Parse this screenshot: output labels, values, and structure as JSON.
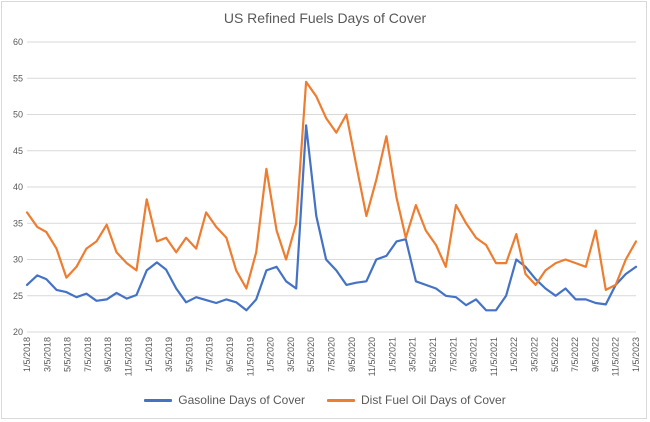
{
  "chart_data": {
    "type": "line",
    "title": "US Refined Fuels Days of Cover",
    "xlabel": "",
    "ylabel": "",
    "ylim": [
      20,
      60
    ],
    "yticks": [
      20,
      25,
      30,
      35,
      40,
      45,
      50,
      55,
      60
    ],
    "grid": true,
    "legend_position": "bottom",
    "x_tick_labels": [
      "1/5/2018",
      "3/5/2018",
      "5/5/2018",
      "7/5/2018",
      "9/5/2018",
      "11/5/2018",
      "1/5/2019",
      "3/5/2019",
      "5/5/2019",
      "7/5/2019",
      "9/5/2019",
      "11/5/2019",
      "1/5/2020",
      "3/5/2020",
      "5/5/2020",
      "7/5/2020",
      "9/5/2020",
      "11/5/2020",
      "1/5/2021",
      "3/5/2021",
      "5/5/2021",
      "7/5/2021",
      "9/5/2021",
      "11/5/2021",
      "1/5/2022",
      "3/5/2022",
      "5/5/2022",
      "7/5/2022",
      "9/5/2022",
      "11/5/2022",
      "1/5/2023"
    ],
    "x": [
      "2018-01-05",
      "2018-02-05",
      "2018-03-05",
      "2018-04-05",
      "2018-05-05",
      "2018-06-05",
      "2018-07-05",
      "2018-08-05",
      "2018-09-05",
      "2018-10-05",
      "2018-11-05",
      "2018-12-05",
      "2019-01-05",
      "2019-02-05",
      "2019-03-05",
      "2019-04-05",
      "2019-05-05",
      "2019-06-05",
      "2019-07-05",
      "2019-08-05",
      "2019-09-05",
      "2019-10-05",
      "2019-11-05",
      "2019-12-05",
      "2020-01-05",
      "2020-02-05",
      "2020-03-05",
      "2020-04-05",
      "2020-05-05",
      "2020-06-05",
      "2020-07-05",
      "2020-08-05",
      "2020-09-05",
      "2020-10-05",
      "2020-11-05",
      "2020-12-05",
      "2021-01-05",
      "2021-02-05",
      "2021-03-05",
      "2021-04-05",
      "2021-05-05",
      "2021-06-05",
      "2021-07-05",
      "2021-08-05",
      "2021-09-05",
      "2021-10-05",
      "2021-11-05",
      "2021-12-05",
      "2022-01-05",
      "2022-02-05",
      "2022-03-05",
      "2022-04-05",
      "2022-05-05",
      "2022-06-05",
      "2022-07-05",
      "2022-08-05",
      "2022-09-05",
      "2022-10-05",
      "2022-11-05",
      "2022-12-05",
      "2023-01-05",
      "2023-02-05"
    ],
    "series": [
      {
        "name": "Gasoline Days of Cover",
        "color": "#4472C4",
        "values": [
          26.5,
          27.8,
          27.3,
          25.8,
          25.5,
          24.8,
          25.3,
          24.3,
          24.5,
          25.4,
          24.6,
          25.1,
          28.5,
          29.6,
          28.6,
          26.0,
          24.1,
          24.8,
          24.4,
          24.0,
          24.5,
          24.1,
          23.0,
          24.5,
          28.5,
          29.0,
          27.0,
          26.0,
          48.5,
          36.0,
          30.0,
          28.5,
          26.5,
          26.8,
          27.0,
          30.0,
          30.5,
          32.5,
          32.8,
          27.0,
          26.5,
          26.0,
          25.0,
          24.8,
          23.7,
          24.5,
          23.0,
          23.0,
          25.0,
          30.0,
          29.0,
          27.3,
          26.0,
          25.0,
          26.0,
          24.5,
          24.5,
          24.0,
          23.8,
          26.5,
          28.0,
          29.0
        ]
      },
      {
        "name": "Dist Fuel Oil Days of Cover",
        "color": "#ED7D31",
        "values": [
          36.5,
          34.5,
          33.8,
          31.5,
          27.5,
          29.0,
          31.5,
          32.5,
          34.8,
          31.0,
          29.5,
          28.5,
          38.3,
          32.5,
          33.0,
          31.0,
          33.0,
          31.5,
          36.5,
          34.5,
          33.0,
          28.5,
          26.0,
          31.0,
          42.5,
          34.0,
          30.0,
          35.0,
          54.5,
          52.5,
          49.5,
          47.5,
          50.0,
          43.0,
          36.0,
          41.0,
          47.0,
          38.5,
          33.0,
          37.5,
          34.0,
          32.0,
          29.0,
          37.5,
          35.0,
          33.0,
          32.0,
          29.5,
          29.5,
          33.5,
          28.0,
          26.5,
          28.5,
          29.5,
          30.0,
          29.5,
          29.0,
          34.0,
          25.8,
          26.5,
          30.0,
          32.5
        ]
      }
    ]
  }
}
